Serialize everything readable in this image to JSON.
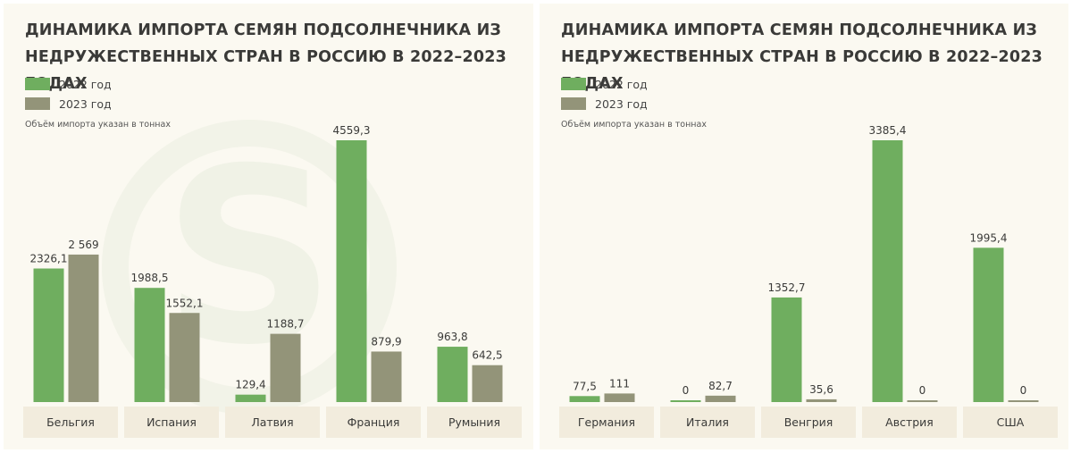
{
  "colors": {
    "y2022": "#6fae5f",
    "y2023": "#939479",
    "category_box": "#f2ecdd",
    "background": "#fbf9f1"
  },
  "chart_data": [
    {
      "type": "bar",
      "title": "ДИНАМИКА ИМПОРТА СЕМЯН ПОДСОЛНЕЧНИКА ИЗ НЕДРУЖЕСТВЕННЫХ СТРАН В РОССИЮ В 2022–2023 ГОДАХ",
      "note": "Объём импорта указан в тоннах",
      "categories": [
        "Бельгия",
        "Испания",
        "Латвия",
        "Франция",
        "Румыния"
      ],
      "series": [
        {
          "name": "2022 год",
          "values": [
            2326.1,
            1988.5,
            129.4,
            4559.3,
            963.8
          ],
          "labels": [
            "2326,1",
            "1988,5",
            "129,4",
            "4559,3",
            "963,8"
          ]
        },
        {
          "name": "2023 год",
          "values": [
            2569,
            1552.1,
            1188.7,
            879.9,
            642.5
          ],
          "labels": [
            "2 569",
            "1552,1",
            "1188,7",
            "879,9",
            "642,5"
          ]
        }
      ],
      "ylim": [
        0,
        4559.3
      ]
    },
    {
      "type": "bar",
      "title": "ДИНАМИКА ИМПОРТА СЕМЯН ПОДСОЛНЕЧНИКА ИЗ НЕДРУЖЕСТВЕННЫХ СТРАН В РОССИЮ В 2022–2023 ГОДАХ",
      "note": "Объём импорта указан в тоннах",
      "categories": [
        "Германия",
        "Италия",
        "Венгрия",
        "Австрия",
        "США"
      ],
      "series": [
        {
          "name": "2022 год",
          "values": [
            77.5,
            0,
            1352.7,
            3385.4,
            1995.4
          ],
          "labels": [
            "77,5",
            "0",
            "1352,7",
            "3385,4",
            "1995,4"
          ]
        },
        {
          "name": "2023 год",
          "values": [
            111,
            82.7,
            35.6,
            0,
            0
          ],
          "labels": [
            "111",
            "82,7",
            "35,6",
            "0",
            "0"
          ]
        }
      ],
      "ylim": [
        0,
        3385.4
      ]
    }
  ]
}
